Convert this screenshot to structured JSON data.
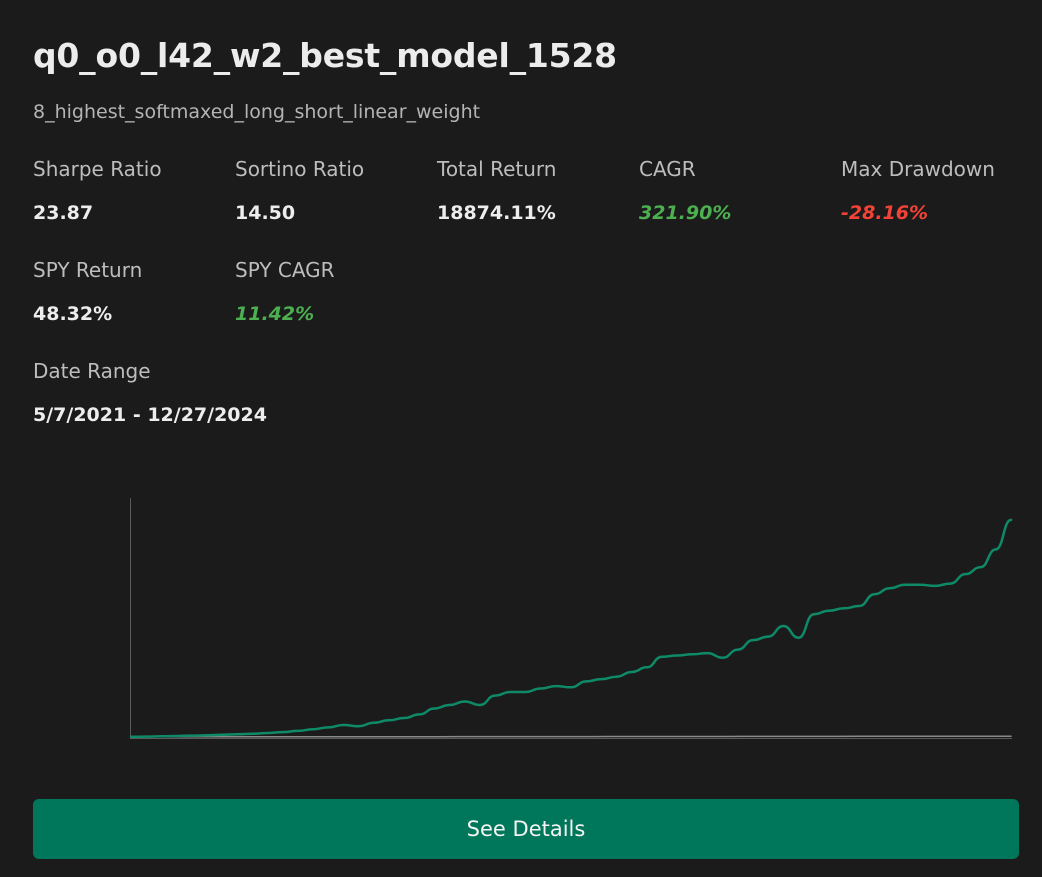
{
  "card": {
    "title": "q0_o0_l42_w2_best_model_1528",
    "subtitle": "8_highest_softmaxed_long_short_linear_weight"
  },
  "metrics": {
    "sharpe": {
      "label": "Sharpe Ratio",
      "value": "23.87"
    },
    "sortino": {
      "label": "Sortino Ratio",
      "value": "14.50"
    },
    "total_return": {
      "label": "Total Return",
      "value": "18874.11%"
    },
    "cagr": {
      "label": "CAGR",
      "value": "321.90%"
    },
    "max_drawdown": {
      "label": "Max Drawdown",
      "value": "-28.16%"
    },
    "spy_return": {
      "label": "SPY Return",
      "value": "48.32%"
    },
    "spy_cagr": {
      "label": "SPY CAGR",
      "value": "11.42%"
    },
    "date_range": {
      "label": "Date Range",
      "value": "5/7/2021 - 12/27/2024"
    }
  },
  "colors": {
    "background": "#1b1b1b",
    "positive": "#4caf50",
    "negative": "#f44336",
    "accent": "#00775a",
    "strategy_line": "#0f8a68",
    "benchmark_line": "#8a8a8a"
  },
  "actions": {
    "see_details": "See Details"
  },
  "chart_data": {
    "type": "line",
    "x_range": [
      "5/7/2021",
      "12/27/2024"
    ],
    "ylim": [
      0,
      190
    ],
    "series": [
      {
        "values": [
          1,
          1.2,
          1.4,
          1.7,
          2,
          2.3,
          2.7,
          3.1,
          3.6,
          4.2,
          5,
          6,
          7.5,
          9,
          11,
          10,
          13,
          15,
          17,
          20,
          25,
          28,
          31,
          28,
          36,
          39,
          39,
          42,
          44,
          43,
          48,
          50,
          52,
          56,
          60,
          69,
          70,
          71,
          72,
          68,
          75,
          83,
          86,
          95,
          85,
          105,
          108,
          110,
          112,
          122,
          127,
          130,
          130,
          129,
          131,
          139,
          145,
          160,
          185
        ]
      },
      {
        "values": [
          1,
          1.02,
          1.03,
          1.05,
          1.04,
          1.06,
          1.08,
          1.1,
          1.12,
          1.15,
          1.18,
          1.2,
          1.22,
          1.25,
          1.28,
          1.3,
          1.32,
          1.35,
          1.38,
          1.4,
          1.42,
          1.44,
          1.46,
          1.48
        ]
      }
    ]
  }
}
